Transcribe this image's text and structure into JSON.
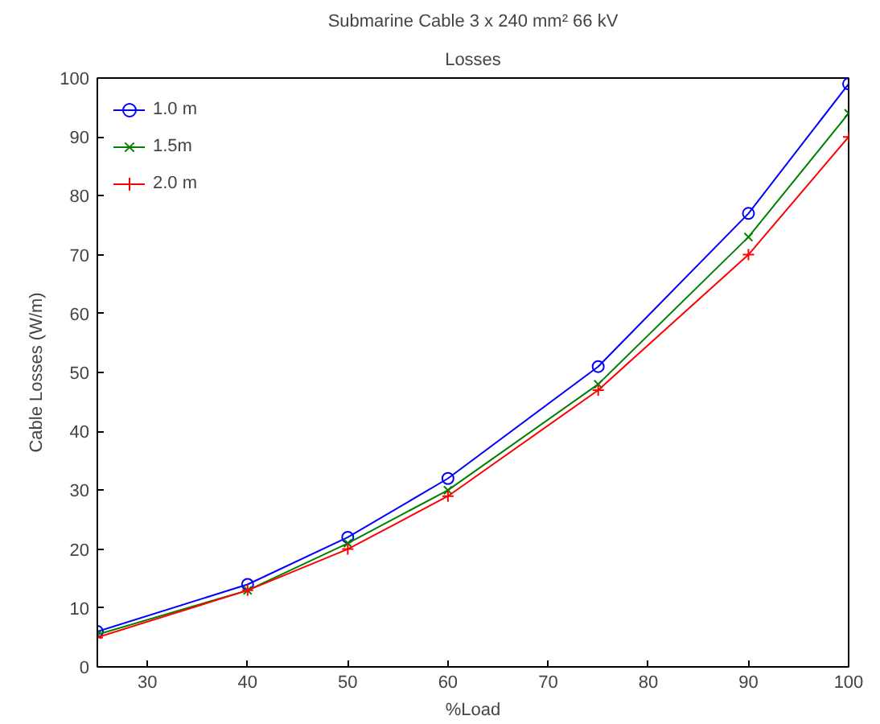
{
  "chart_data": {
    "type": "line",
    "title": "Submarine Cable 3 x 240 mm² 66 kV",
    "subtitle": "Losses",
    "xlabel": "%Load",
    "ylabel": "Cable Losses (W/m)",
    "x": [
      25,
      40,
      50,
      60,
      75,
      90,
      100
    ],
    "series": [
      {
        "name": "1.0 m",
        "color": "#0000ff",
        "marker": "circle",
        "values": [
          6,
          14,
          22,
          32,
          51,
          77,
          99
        ]
      },
      {
        "name": "1.5m",
        "color": "#008000",
        "marker": "x",
        "values": [
          5.5,
          13,
          21,
          30,
          48,
          73,
          94
        ]
      },
      {
        "name": "2.0 m",
        "color": "#ff0000",
        "marker": "cross",
        "values": [
          5,
          13,
          20,
          29,
          47,
          70,
          90
        ]
      }
    ],
    "xlim": [
      25,
      100
    ],
    "ylim": [
      0,
      100
    ],
    "xticks": [
      30,
      40,
      50,
      60,
      70,
      80,
      90,
      100
    ],
    "yticks": [
      0,
      10,
      20,
      30,
      40,
      50,
      60,
      70,
      80,
      90,
      100
    ],
    "grid": false,
    "legend": "top left",
    "line_style": "solid"
  }
}
